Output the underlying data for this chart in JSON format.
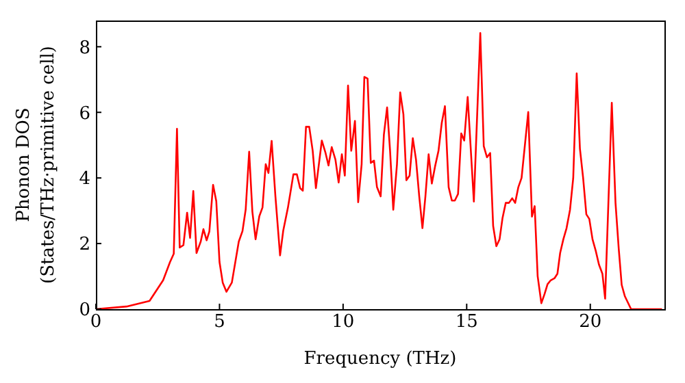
{
  "chart_data": {
    "type": "line",
    "xlabel": "Frequency (THz)",
    "ylabel": "Phonon DOS\n(States/THz·primitive cell)",
    "color": "#ff0000",
    "x": [
      0,
      1.24,
      2.17,
      2.72,
      3.0,
      3.15,
      3.28,
      3.39,
      3.54,
      3.69,
      3.81,
      3.94,
      4.07,
      4.24,
      4.35,
      4.48,
      4.59,
      4.74,
      4.87,
      5.0,
      5.13,
      5.28,
      5.5,
      5.78,
      5.93,
      6.06,
      6.2,
      6.33,
      6.46,
      6.61,
      6.74,
      6.87,
      6.98,
      7.11,
      7.26,
      7.45,
      7.58,
      7.77,
      7.99,
      8.13,
      8.26,
      8.37,
      8.5,
      8.63,
      8.77,
      8.9,
      9.14,
      9.29,
      9.41,
      9.54,
      9.69,
      9.82,
      9.95,
      10.07,
      10.2,
      10.33,
      10.48,
      10.61,
      10.75,
      10.86,
      10.99,
      11.12,
      11.25,
      11.37,
      11.52,
      11.65,
      11.78,
      11.9,
      12.03,
      12.18,
      12.31,
      12.44,
      12.56,
      12.69,
      12.82,
      12.95,
      13.08,
      13.21,
      13.33,
      13.46,
      13.59,
      13.72,
      13.86,
      13.99,
      14.12,
      14.27,
      14.4,
      14.52,
      14.65,
      14.78,
      14.9,
      15.04,
      15.29,
      15.55,
      15.69,
      15.82,
      15.95,
      16.07,
      16.2,
      16.33,
      16.45,
      16.58,
      16.71,
      16.84,
      16.96,
      17.09,
      17.22,
      17.49,
      17.64,
      17.75,
      17.87,
      18.02,
      18.15,
      18.27,
      18.4,
      18.55,
      18.67,
      18.78,
      18.91,
      19.04,
      19.18,
      19.31,
      19.45,
      19.58,
      19.71,
      19.84,
      19.96,
      20.09,
      20.22,
      20.35,
      20.49,
      20.6,
      20.87,
      21.02,
      21.15,
      21.27,
      21.4,
      21.65,
      22.9
    ],
    "values": [
      0,
      0.08,
      0.25,
      0.88,
      1.44,
      1.69,
      5.5,
      1.88,
      1.95,
      2.94,
      2.17,
      3.6,
      1.71,
      2.06,
      2.44,
      2.1,
      2.37,
      3.79,
      3.29,
      1.44,
      0.81,
      0.53,
      0.81,
      2.06,
      2.38,
      3.04,
      4.8,
      2.97,
      2.13,
      2.83,
      3.1,
      4.42,
      4.15,
      5.13,
      3.46,
      1.64,
      2.4,
      3.1,
      4.11,
      4.11,
      3.69,
      3.61,
      5.56,
      5.56,
      4.83,
      3.69,
      5.14,
      4.76,
      4.38,
      4.94,
      4.56,
      3.86,
      4.72,
      4.07,
      6.82,
      4.83,
      5.74,
      3.26,
      4.42,
      7.08,
      7.03,
      4.46,
      4.53,
      3.72,
      3.44,
      5.32,
      6.15,
      4.83,
      3.03,
      4.42,
      6.61,
      5.94,
      3.93,
      4.07,
      5.21,
      4.56,
      3.44,
      2.47,
      3.44,
      4.72,
      3.83,
      4.35,
      4.83,
      5.67,
      6.19,
      3.72,
      3.31,
      3.31,
      3.51,
      5.36,
      5.14,
      6.47,
      3.28,
      8.42,
      4.97,
      4.63,
      4.76,
      2.54,
      1.92,
      2.13,
      2.78,
      3.24,
      3.24,
      3.38,
      3.24,
      3.72,
      4.0,
      6.01,
      2.82,
      3.14,
      1.01,
      0.18,
      0.46,
      0.76,
      0.88,
      0.94,
      1.08,
      1.71,
      2.13,
      2.47,
      3.03,
      4.0,
      7.19,
      4.9,
      4.0,
      2.89,
      2.75,
      2.13,
      1.78,
      1.36,
      1.08,
      0.32,
      6.29,
      3.24,
      1.85,
      0.74,
      0.39,
      0,
      0
    ],
    "xlim": [
      0,
      23
    ],
    "ylim": [
      0,
      8.8
    ],
    "xticks": [
      0,
      5,
      10,
      15,
      20
    ],
    "yticks": [
      0,
      2,
      4,
      6,
      8
    ]
  }
}
